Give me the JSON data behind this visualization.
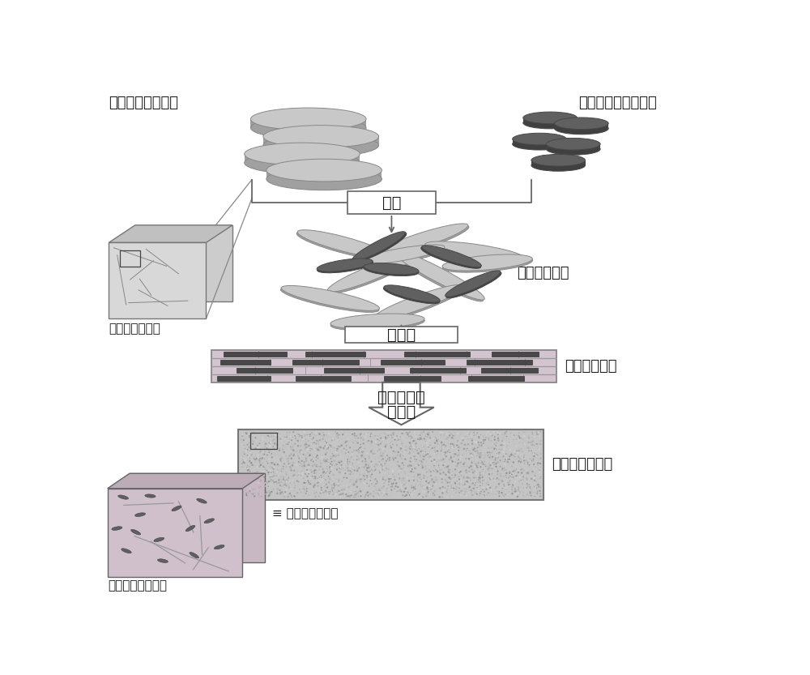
{
  "bg_color": "#ffffff",
  "gray_disk_top": "#c8c8c8",
  "gray_disk_side": "#a0a0a0",
  "gray_disk_edge": "#888888",
  "dark_disk_top": "#606060",
  "dark_disk_side": "#404040",
  "dark_disk_edge": "#484848",
  "pink_bg": "#d8c8d4",
  "pink_top": "#c0b0bc",
  "pink_back": "#ccbcc8",
  "dark_rect_fill": "#484848",
  "layer_bg": "#d4c4d0",
  "layer_line": "#999999",
  "final_gray": "#c4c4c4",
  "final_edge": "#777777",
  "zoom_front": "#d0c0cc",
  "zoom_top": "#bcacb8",
  "zoom_back": "#c8b8c4",
  "nano_dark": "#606060",
  "arrow_col": "#666666",
  "box_edge": "#666666",
  "txt_col": "#1a1a1a",
  "lbl_fs": 13,
  "step_fs": 14,
  "t1": "基体元素微纳米片",
  "t2": "合金化元素微纳米片",
  "t_mix": "混合",
  "t_mpow": "混合元素粉末",
  "t_dens": "致密化",
  "t_layer": "层状粉末坏体",
  "t_s1": "烧结、变形",
  "t_s2": "热处理",
  "t_final": "超细晶合金块体",
  "t_z1": "择优取向超细晶",
  "t_z2": "层片状超细晶织构",
  "t_nano": "纳米合金强化相"
}
